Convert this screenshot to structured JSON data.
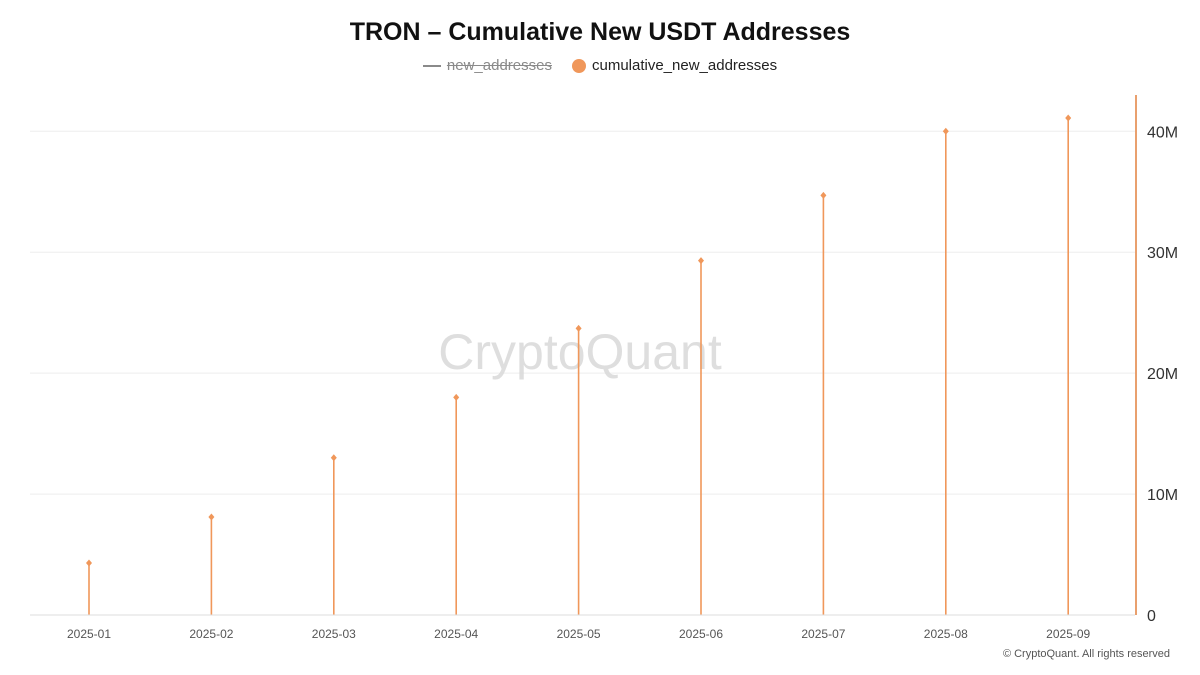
{
  "title": "TRON – Cumulative New USDT Addresses",
  "legend": [
    {
      "label": "new_addresses",
      "marker": "line",
      "hidden": true
    },
    {
      "label": "cumulative_new_addresses",
      "marker": "dot",
      "hidden": false
    }
  ],
  "watermark": "CryptoQuant",
  "copyright": "© CryptoQuant. All rights reserved",
  "colors": {
    "series": "#f0975a",
    "hidden_series": "#8a8a8a",
    "axis": "#e9a06e",
    "grid": "#eeeeee"
  },
  "chart_data": {
    "type": "bar",
    "categories": [
      "2025-01",
      "2025-02",
      "2025-03",
      "2025-04",
      "2025-05",
      "2025-06",
      "2025-07",
      "2025-08",
      "2025-09"
    ],
    "series": [
      {
        "name": "cumulative_new_addresses",
        "values": [
          4300000,
          8100000,
          13000000,
          18000000,
          23700000,
          29300000,
          34700000,
          40000000,
          41100000
        ]
      }
    ],
    "y_ticks": [
      "0",
      "10M",
      "20M",
      "30M",
      "40M"
    ],
    "y_tick_values": [
      0,
      10000000,
      20000000,
      30000000,
      40000000
    ],
    "ylim": [
      0,
      43000000
    ],
    "y_axis_side": "right",
    "grid": true,
    "legend_position": "top-center"
  }
}
